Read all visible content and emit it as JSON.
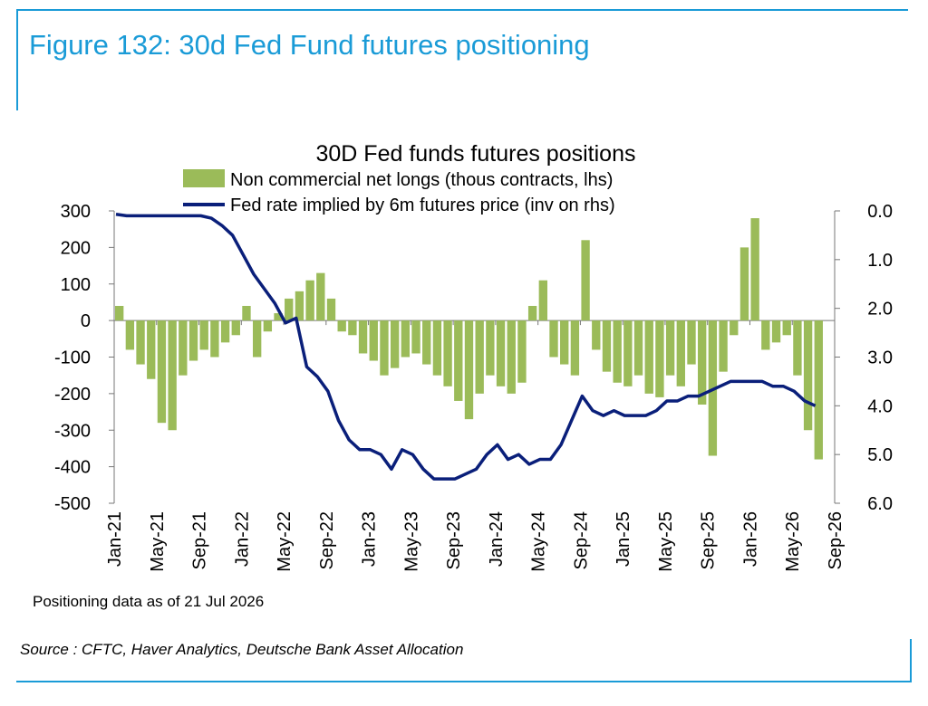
{
  "figure_title": "Figure 132: 30d Fed Fund futures positioning",
  "note": "Positioning data as of 21 Jul 2026",
  "source": "Source : CFTC, Haver Analytics, Deutsche Bank Asset Allocation",
  "colors": {
    "accent": "#1a9bd7",
    "bars": "#9bbb59",
    "line": "#0a1f7a"
  },
  "chart_data": {
    "type": "bar",
    "title": "30D Fed funds futures positions",
    "legend_position": "top",
    "grid": false,
    "x_ticks": [
      "Jan-21",
      "May-21",
      "Sep-21",
      "Jan-22",
      "May-22",
      "Sep-22",
      "Jan-23",
      "May-23",
      "Sep-23",
      "Jan-24",
      "May-24",
      "Sep-24",
      "Jan-25",
      "May-25",
      "Sep-25",
      "Jan-26",
      "May-26",
      "Sep-26"
    ],
    "x_range": [
      "2021-01",
      "2026-09"
    ],
    "y_left": {
      "ylim": [
        -500,
        300
      ],
      "ticks": [
        "300",
        "200",
        "100",
        "0",
        "-100",
        "-200",
        "-300",
        "-400",
        "-500"
      ]
    },
    "y_right": {
      "ylim": [
        6.0,
        0.0
      ],
      "inverted": true,
      "ticks": [
        "0.0",
        "1.0",
        "2.0",
        "3.0",
        "4.0",
        "5.0",
        "6.0"
      ]
    },
    "series": [
      {
        "name": "Non commercial net longs (thous contracts, lhs)",
        "type": "bar",
        "axis": "left",
        "x": [
          "2021-01",
          "2021-02",
          "2021-03",
          "2021-04",
          "2021-05",
          "2021-06",
          "2021-07",
          "2021-08",
          "2021-09",
          "2021-10",
          "2021-11",
          "2021-12",
          "2022-01",
          "2022-02",
          "2022-03",
          "2022-04",
          "2022-05",
          "2022-06",
          "2022-07",
          "2022-08",
          "2022-09",
          "2022-10",
          "2022-11",
          "2022-12",
          "2023-01",
          "2023-02",
          "2023-03",
          "2023-04",
          "2023-05",
          "2023-06",
          "2023-07",
          "2023-08",
          "2023-09",
          "2023-10",
          "2023-11",
          "2023-12",
          "2024-01",
          "2024-02",
          "2024-03",
          "2024-04",
          "2024-05",
          "2024-06",
          "2024-07",
          "2024-08",
          "2024-09",
          "2024-10",
          "2024-11",
          "2024-12",
          "2025-01",
          "2025-02",
          "2025-03",
          "2025-04",
          "2025-05",
          "2025-06",
          "2025-07",
          "2025-08",
          "2025-09",
          "2025-10",
          "2025-11",
          "2025-12",
          "2026-01",
          "2026-02",
          "2026-03",
          "2026-04",
          "2026-05",
          "2026-06",
          "2026-07"
        ],
        "values": [
          40,
          -80,
          -120,
          -160,
          -280,
          -300,
          -150,
          -110,
          -80,
          -100,
          -60,
          -40,
          40,
          -100,
          -30,
          20,
          60,
          80,
          110,
          130,
          60,
          -30,
          -40,
          -90,
          -110,
          -150,
          -130,
          -100,
          -90,
          -120,
          -150,
          -180,
          -220,
          -270,
          -200,
          -150,
          -180,
          -200,
          -170,
          40,
          110,
          -100,
          -120,
          -150,
          220,
          -80,
          -140,
          -170,
          -180,
          -150,
          -200,
          -210,
          -150,
          -180,
          -120,
          -230,
          -370,
          -140,
          -40,
          200,
          280,
          -80,
          -60,
          -40,
          -150,
          -300,
          -380
        ]
      },
      {
        "name": "Fed rate implied by 6m futures price (inv on rhs)",
        "type": "line",
        "axis": "right",
        "x": [
          "2021-01",
          "2021-02",
          "2021-03",
          "2021-04",
          "2021-05",
          "2021-06",
          "2021-07",
          "2021-08",
          "2021-09",
          "2021-10",
          "2021-11",
          "2021-12",
          "2022-01",
          "2022-02",
          "2022-03",
          "2022-04",
          "2022-05",
          "2022-06",
          "2022-07",
          "2022-08",
          "2022-09",
          "2022-10",
          "2022-11",
          "2022-12",
          "2023-01",
          "2023-02",
          "2023-03",
          "2023-04",
          "2023-05",
          "2023-06",
          "2023-07",
          "2023-08",
          "2023-09",
          "2023-10",
          "2023-11",
          "2023-12",
          "2024-01",
          "2024-02",
          "2024-03",
          "2024-04",
          "2024-05",
          "2024-06",
          "2024-07",
          "2024-08",
          "2024-09",
          "2024-10",
          "2024-11",
          "2024-12",
          "2025-01",
          "2025-02",
          "2025-03",
          "2025-04",
          "2025-05",
          "2025-06",
          "2025-07",
          "2025-08",
          "2025-09",
          "2025-10",
          "2025-11",
          "2025-12",
          "2026-01",
          "2026-02",
          "2026-03",
          "2026-04",
          "2026-05",
          "2026-06",
          "2026-07"
        ],
        "values": [
          0.07,
          0.1,
          0.1,
          0.1,
          0.1,
          0.1,
          0.1,
          0.1,
          0.1,
          0.15,
          0.3,
          0.5,
          0.9,
          1.3,
          1.6,
          1.9,
          2.3,
          2.2,
          3.2,
          3.4,
          3.7,
          4.3,
          4.7,
          4.9,
          4.9,
          5.0,
          5.3,
          4.9,
          5.0,
          5.3,
          5.5,
          5.5,
          5.5,
          5.4,
          5.3,
          5.0,
          4.8,
          5.1,
          5.0,
          5.2,
          5.1,
          5.1,
          4.8,
          4.3,
          3.8,
          4.1,
          4.2,
          4.1,
          4.2,
          4.2,
          4.2,
          4.1,
          3.9,
          3.9,
          3.8,
          3.8,
          3.7,
          3.6,
          3.5,
          3.5,
          3.5,
          3.5,
          3.6,
          3.6,
          3.7,
          3.9,
          4.0
        ]
      }
    ]
  }
}
